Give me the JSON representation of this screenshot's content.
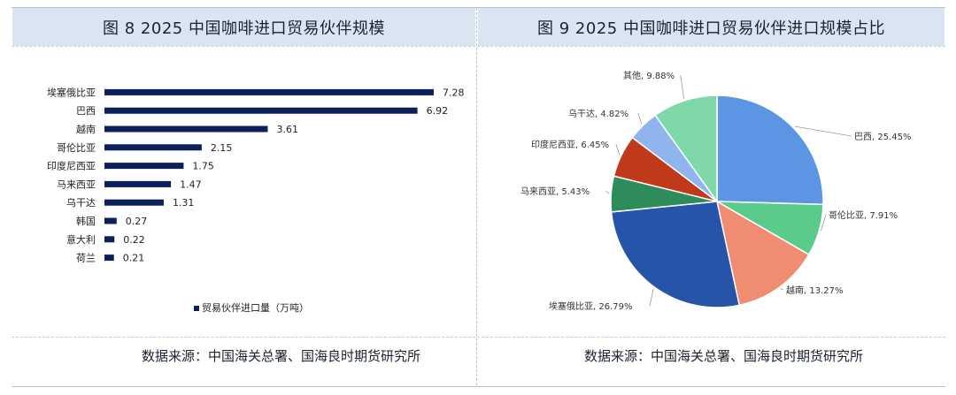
{
  "left_panel": {
    "title": "图 8   2025 中国咖啡进口贸易伙伴规模",
    "source": "数据来源：中国海关总署、国海良时期货研究所"
  },
  "right_panel": {
    "title": "图 9   2025 中国咖啡进口贸易伙伴进口规模占比",
    "source": "数据来源：中国海关总署、国海良时期货研究所"
  },
  "chart_data": [
    {
      "type": "bar",
      "orientation": "horizontal",
      "categories": [
        "埃塞俄比亚",
        "巴西",
        "越南",
        "哥伦比亚",
        "印度尼西亚",
        "马来西亚",
        "乌干达",
        "韩国",
        "意大利",
        "荷兰"
      ],
      "series": [
        {
          "name": "贸易伙伴进口量（万吨）",
          "values": [
            7.28,
            6.92,
            3.61,
            2.15,
            1.75,
            1.47,
            1.31,
            0.27,
            0.22,
            0.21
          ],
          "color": "#0d1f5c"
        }
      ],
      "value_labels": [
        "7.28",
        "6.92",
        "3.61",
        "2.15",
        "1.75",
        "1.47",
        "1.31",
        "0.27",
        "0.22",
        "0.21"
      ],
      "legend": "bottom",
      "grid": false
    },
    {
      "type": "pie",
      "slices": [
        {
          "label": "巴西",
          "value": 25.45,
          "text": "巴西, 25.45%",
          "color": "#5b95e3"
        },
        {
          "label": "哥伦比亚",
          "value": 7.91,
          "text": "哥伦比亚, 7.91%",
          "color": "#5bcb8c"
        },
        {
          "label": "越南",
          "value": 13.27,
          "text": "越南, 13.27%",
          "color": "#f08c72"
        },
        {
          "label": "埃塞俄比亚",
          "value": 26.79,
          "text": "埃塞俄比亚, 26.79%",
          "color": "#2554a8"
        },
        {
          "label": "马来西亚",
          "value": 5.43,
          "text": "马来西亚, 5.43%",
          "color": "#2e8b5a"
        },
        {
          "label": "印度尼西亚",
          "value": 6.45,
          "text": "印度尼西亚, 6.45%",
          "color": "#c0391a"
        },
        {
          "label": "乌干达",
          "value": 4.82,
          "text": "乌干达, 4.82%",
          "color": "#8fb4ee"
        },
        {
          "label": "其他",
          "value": 9.88,
          "text": "其他, 9.88%",
          "color": "#7ed8a8"
        }
      ]
    }
  ]
}
